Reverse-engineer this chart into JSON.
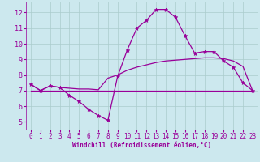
{
  "xlabel": "Windchill (Refroidissement éolien,°C)",
  "bg_color": "#cce8ee",
  "line_color": "#990099",
  "grid_color": "#aacccc",
  "xlim": [
    -0.5,
    23.5
  ],
  "ylim": [
    4.5,
    12.7
  ],
  "xticks": [
    0,
    1,
    2,
    3,
    4,
    5,
    6,
    7,
    8,
    9,
    10,
    11,
    12,
    13,
    14,
    15,
    16,
    17,
    18,
    19,
    20,
    21,
    22,
    23
  ],
  "yticks": [
    5,
    6,
    7,
    8,
    9,
    10,
    11,
    12
  ],
  "curve1_x": [
    0,
    1,
    2,
    3,
    4,
    5,
    6,
    7,
    8,
    9,
    10,
    11,
    12,
    13,
    14,
    15,
    16,
    17,
    18,
    19,
    20,
    21,
    22,
    23
  ],
  "curve1_y": [
    7.4,
    7.0,
    7.3,
    7.2,
    6.7,
    6.3,
    5.8,
    5.4,
    5.1,
    7.9,
    9.6,
    11.0,
    11.5,
    12.2,
    12.2,
    11.7,
    10.5,
    9.4,
    9.5,
    9.5,
    8.9,
    8.5,
    7.5,
    7.0
  ],
  "curve2_x": [
    0,
    1,
    2,
    3,
    4,
    5,
    6,
    7,
    8,
    9,
    10,
    11,
    12,
    13,
    14,
    15,
    16,
    17,
    18,
    19,
    20,
    21,
    22,
    23
  ],
  "curve2_y": [
    7.4,
    7.0,
    7.3,
    7.2,
    7.15,
    7.1,
    7.1,
    7.05,
    7.8,
    8.0,
    8.3,
    8.5,
    8.65,
    8.8,
    8.9,
    8.95,
    9.0,
    9.05,
    9.1,
    9.1,
    9.05,
    8.9,
    8.55,
    7.0
  ],
  "curve3_x": [
    0,
    1,
    2,
    3,
    4,
    5,
    6,
    7,
    8,
    9,
    10,
    11,
    12,
    13,
    14,
    15,
    16,
    17,
    18,
    19,
    20,
    21,
    22,
    23
  ],
  "curve3_y": [
    7.0,
    7.0,
    7.0,
    7.0,
    7.0,
    7.0,
    7.0,
    7.0,
    7.0,
    7.0,
    7.0,
    7.0,
    7.0,
    7.0,
    7.0,
    7.0,
    7.0,
    7.0,
    7.0,
    7.0,
    7.0,
    7.0,
    7.0,
    7.0
  ]
}
